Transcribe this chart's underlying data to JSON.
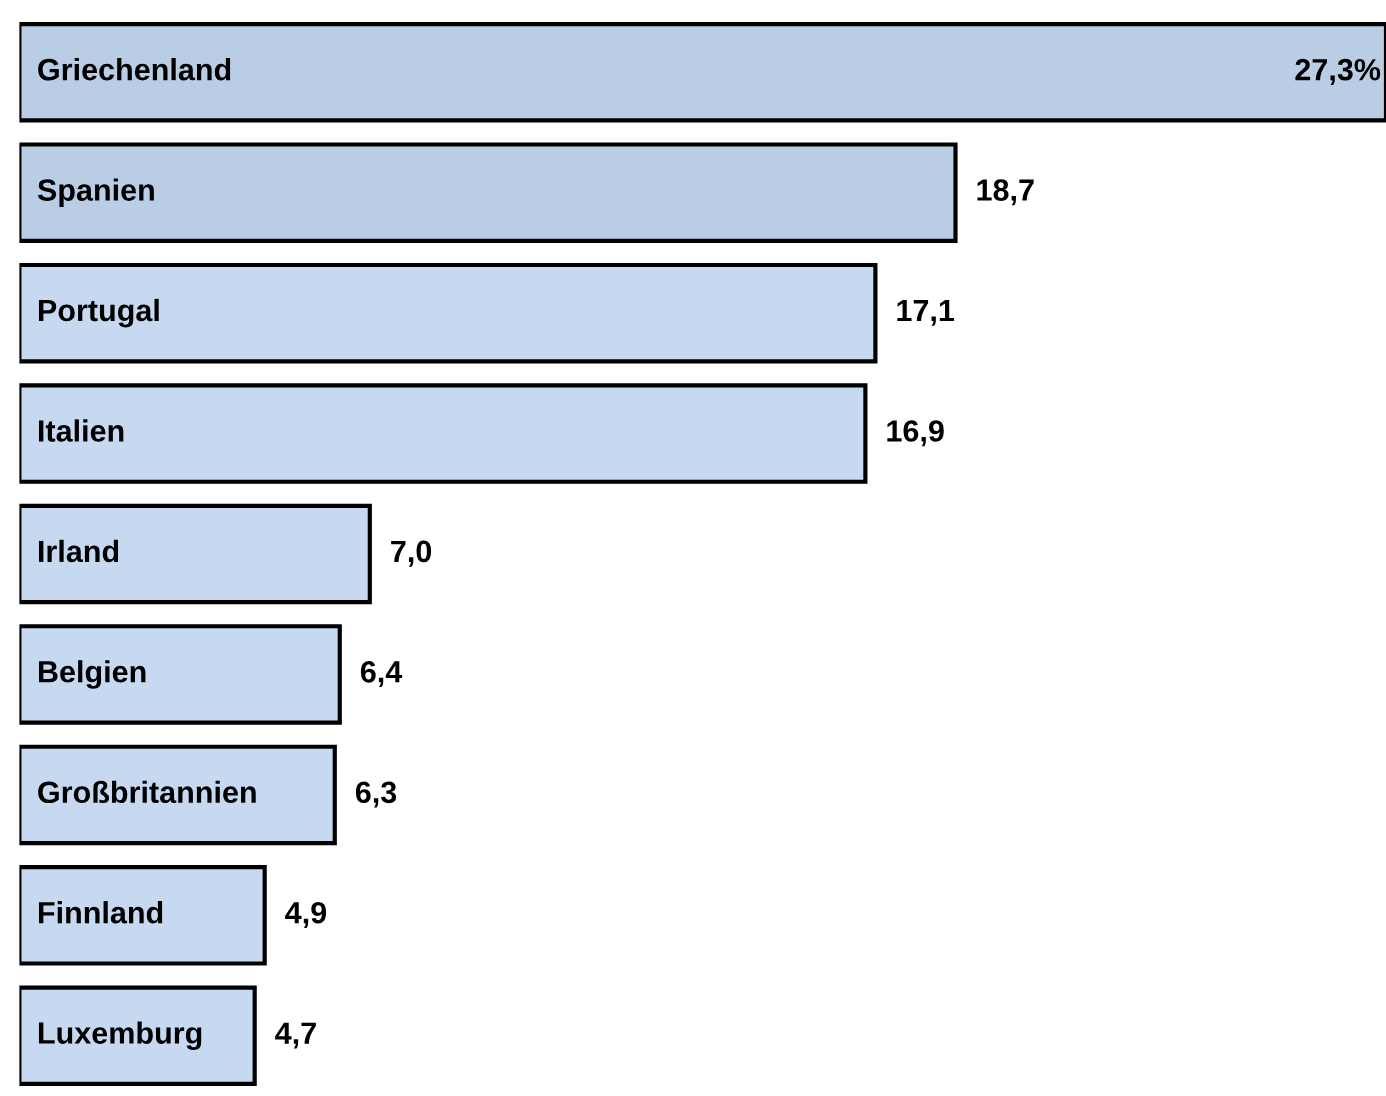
{
  "chart_data": {
    "type": "bar",
    "orientation": "horizontal",
    "categories": [
      "Griechenland",
      "Spanien",
      "Portugal",
      "Italien",
      "Irland",
      "Belgien",
      "Großbritannien",
      "Finnland",
      "Luxemburg"
    ],
    "values": [
      27.3,
      18.7,
      17.1,
      16.9,
      7.0,
      6.4,
      6.3,
      4.9,
      4.7
    ],
    "value_labels": [
      "27,3%",
      "18,7",
      "17,1",
      "16,9",
      "7,0",
      "6,4",
      "6,3",
      "4,9",
      "4,7"
    ],
    "colors": [
      "#b9cde5",
      "#b9cde5",
      "#c6d9f1",
      "#c6d9f1",
      "#c6d9f1",
      "#c6d9f1",
      "#c6d9f1",
      "#c6d9f1",
      "#c6d9f1"
    ]
  }
}
